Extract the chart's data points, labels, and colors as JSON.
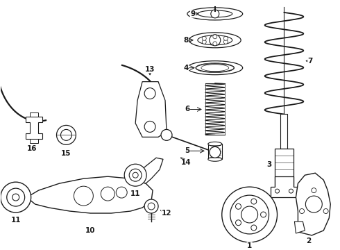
{
  "bg_color": "#ffffff",
  "line_color": "#1a1a1a",
  "fig_width": 4.9,
  "fig_height": 3.6,
  "dpi": 100,
  "xlim": [
    0,
    490
  ],
  "ylim": [
    0,
    360
  ]
}
